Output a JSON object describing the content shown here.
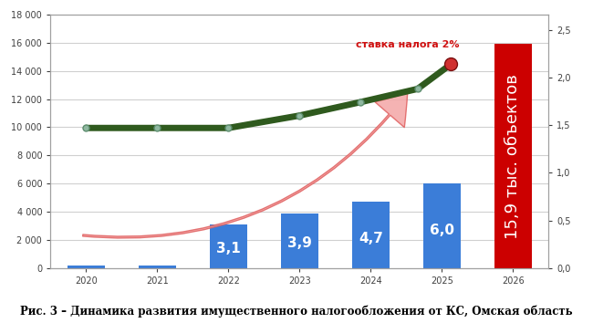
{
  "chart_data": {
    "type": "bar",
    "title": "Рис. 3 – Динамика развития имущественного налогообложения от КС, Омская область",
    "x": [
      2020,
      2021,
      2022,
      2023,
      2024,
      2025,
      2026
    ],
    "xlim": [
      2019.5,
      2026.5
    ],
    "xticks": [
      2020,
      2021,
      2022,
      2023,
      2024,
      2025,
      2026
    ],
    "ylim": [
      0,
      18000
    ],
    "yticks": [
      {
        "value": 0,
        "label": "0"
      },
      {
        "value": 2000,
        "label": "2 000"
      },
      {
        "value": 4000,
        "label": "4 000"
      },
      {
        "value": 6000,
        "label": "6 000"
      },
      {
        "value": 8000,
        "label": "8 000"
      },
      {
        "value": 10000,
        "label": "10 000"
      },
      {
        "value": 12000,
        "label": "12 000"
      },
      {
        "value": 14000,
        "label": "14 000"
      },
      {
        "value": 16000,
        "label": "16 000"
      },
      {
        "value": 18000,
        "label": "18 000"
      }
    ],
    "y2lim": [
      0,
      2.66
    ],
    "y2ticks": [
      {
        "value": 0,
        "label": "0,0"
      },
      {
        "value": 0.5,
        "label": "0,5"
      },
      {
        "value": 1.0,
        "label": "1,0"
      },
      {
        "value": 1.5,
        "label": "1,5"
      },
      {
        "value": 2.0,
        "label": "2,0"
      },
      {
        "value": 2.5,
        "label": "2,5"
      }
    ],
    "grid": true,
    "data_labels": true,
    "series": [
      {
        "type": "bar",
        "values": [
          200,
          200,
          3100,
          3900,
          4700,
          6000,
          15900
        ],
        "value_labels": [
          null,
          null,
          "3,1",
          "3,9",
          "4,7",
          "6,0",
          "15,9 тыс. объектов"
        ],
        "colors": [
          "#3b7dd8",
          "#3b7dd8",
          "#3b7dd8",
          "#3b7dd8",
          "#3b7dd8",
          "#3b7dd8",
          "#cc0000"
        ]
      },
      {
        "type": "line",
        "axis": "y2",
        "x": [
          2020,
          2021,
          2022,
          2023,
          2023.85,
          2024.66,
          2025.13
        ],
        "values": [
          1.47,
          1.47,
          1.47,
          1.6,
          1.74,
          1.88,
          2.14
        ],
        "color": "#2f5a1e",
        "marker": "o"
      }
    ],
    "annotations": [
      "ставка налога 2%"
    ]
  }
}
